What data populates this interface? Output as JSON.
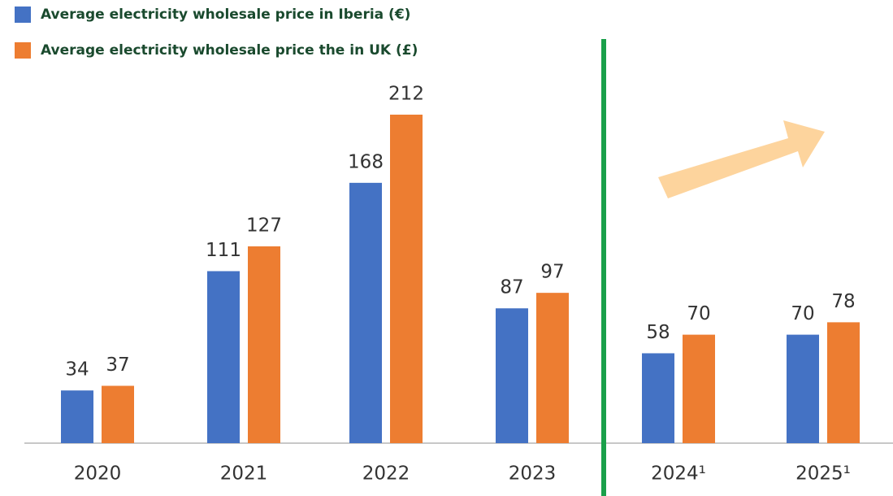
{
  "chart_data": {
    "type": "bar",
    "categories": [
      "2020",
      "2021",
      "2022",
      "2023",
      "2024¹",
      "2025¹"
    ],
    "series": [
      {
        "name": "Average electricity wholesale price in Iberia (€)",
        "color": "#4472c4",
        "values": [
          34,
          111,
          168,
          87,
          58,
          70
        ]
      },
      {
        "name": "Average electricity wholesale price the in UK (£)",
        "color": "#ed7d31",
        "values": [
          37,
          127,
          212,
          97,
          70,
          78
        ]
      }
    ]
  }
}
